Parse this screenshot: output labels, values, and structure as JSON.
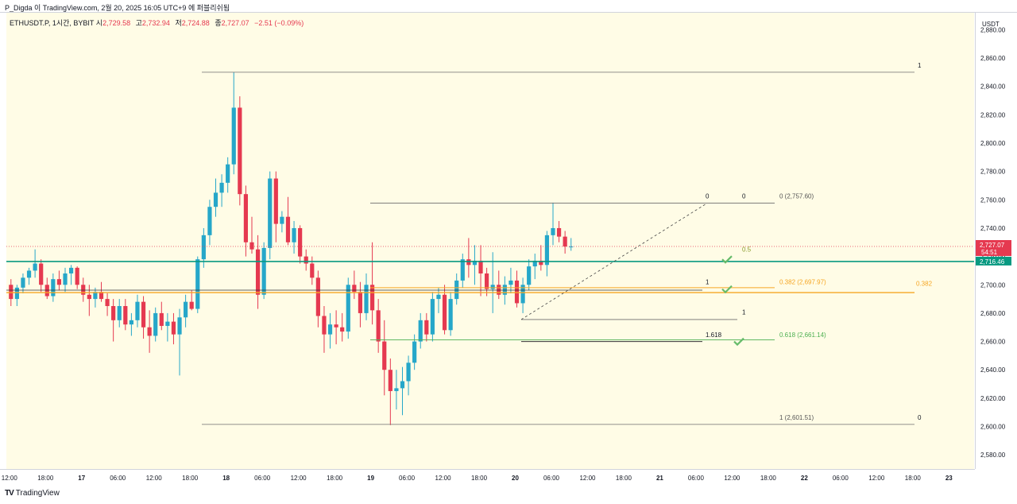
{
  "header": {
    "text": "P_Digda 이 TradingView.com, 2월 20, 2025 16:05 UTC+9 에 퍼블리쉬됨"
  },
  "symbol": {
    "label": "ETHUSDT.P, 1시간, BYBIT",
    "open_label": "시",
    "open": "2,729.58",
    "high_label": "고",
    "high": "2,732.94",
    "low_label": "저",
    "low": "2,724.88",
    "close_label": "종",
    "close": "2,727.07",
    "change": "−2.51 (−0.09%)"
  },
  "price_axis": {
    "currency": "USDT",
    "ticks": [
      "2,880.00",
      "2,860.00",
      "2,840.00",
      "2,820.00",
      "2,800.00",
      "2,780.00",
      "2,760.00",
      "2,740.00",
      "2,720.00",
      "2,700.00",
      "2,680.00",
      "2,660.00",
      "2,640.00",
      "2,620.00",
      "2,600.00",
      "2,580.00"
    ],
    "last_price": "2,727.07",
    "countdown": "54:51",
    "hline_price": "2,716.46"
  },
  "time_axis": {
    "ticks": [
      "12:00",
      "18:00",
      "17",
      "06:00",
      "12:00",
      "18:00",
      "18",
      "06:00",
      "12:00",
      "18:00",
      "19",
      "06:00",
      "12:00",
      "18:00",
      "20",
      "06:00",
      "12:00",
      "18:00",
      "21",
      "06:00",
      "12:00",
      "18:00",
      "22",
      "06:00",
      "12:00",
      "18:00",
      "23"
    ]
  },
  "footer": {
    "brand": "TradingView",
    "logo": "TV"
  },
  "colors": {
    "up": "#26a7c9",
    "down": "#e53950",
    "bg": "#fffce6",
    "hline": "#089981",
    "orange": "#f6a623",
    "green": "#4caf50"
  },
  "chart_data": {
    "type": "candlestick",
    "title": "ETHUSDT.P, 1시간, BYBIT",
    "ylim": [
      2570,
      2892
    ],
    "x_range": [
      0,
      200
    ],
    "ticks_y": [
      2580,
      2600,
      2620,
      2640,
      2660,
      2680,
      2700,
      2720,
      2740,
      2760,
      2780,
      2800,
      2820,
      2840,
      2860,
      2880
    ],
    "time_tick_positions": [
      0,
      6,
      12,
      18,
      24,
      30,
      36,
      42,
      48,
      54,
      60,
      66,
      72,
      78,
      84,
      90,
      96,
      102,
      108,
      114,
      120,
      126,
      132,
      138,
      144,
      150,
      156
    ],
    "candles": [
      [
        2700,
        2704,
        2685,
        2690
      ],
      [
        2690,
        2700,
        2685,
        2698
      ],
      [
        2698,
        2708,
        2694,
        2705
      ],
      [
        2705,
        2712,
        2700,
        2710
      ],
      [
        2710,
        2725,
        2705,
        2715
      ],
      [
        2715,
        2718,
        2695,
        2700
      ],
      [
        2700,
        2705,
        2690,
        2692
      ],
      [
        2692,
        2708,
        2688,
        2704
      ],
      [
        2704,
        2710,
        2696,
        2700
      ],
      [
        2700,
        2712,
        2695,
        2708
      ],
      [
        2708,
        2714,
        2700,
        2712
      ],
      [
        2712,
        2713,
        2697,
        2700
      ],
      [
        2700,
        2705,
        2688,
        2693
      ],
      [
        2693,
        2700,
        2678,
        2690
      ],
      [
        2690,
        2698,
        2684,
        2695
      ],
      [
        2695,
        2702,
        2688,
        2690
      ],
      [
        2690,
        2694,
        2678,
        2685
      ],
      [
        2685,
        2690,
        2660,
        2675
      ],
      [
        2675,
        2690,
        2670,
        2685
      ],
      [
        2685,
        2690,
        2668,
        2672
      ],
      [
        2672,
        2680,
        2664,
        2675
      ],
      [
        2675,
        2693,
        2670,
        2688
      ],
      [
        2688,
        2692,
        2662,
        2670
      ],
      [
        2670,
        2682,
        2652,
        2664
      ],
      [
        2664,
        2684,
        2660,
        2680
      ],
      [
        2680,
        2688,
        2668,
        2671
      ],
      [
        2671,
        2680,
        2660,
        2674
      ],
      [
        2674,
        2680,
        2658,
        2665
      ],
      [
        2665,
        2683,
        2636,
        2677
      ],
      [
        2677,
        2693,
        2670,
        2688
      ],
      [
        2688,
        2696,
        2682,
        2683
      ],
      [
        2683,
        2720,
        2680,
        2718
      ],
      [
        2718,
        2740,
        2712,
        2735
      ],
      [
        2735,
        2760,
        2728,
        2755
      ],
      [
        2755,
        2775,
        2748,
        2765
      ],
      [
        2765,
        2778,
        2755,
        2772
      ],
      [
        2772,
        2790,
        2765,
        2785
      ],
      [
        2785,
        2850,
        2778,
        2825
      ],
      [
        2825,
        2833,
        2756,
        2764
      ],
      [
        2764,
        2770,
        2720,
        2730
      ],
      [
        2730,
        2748,
        2722,
        2725
      ],
      [
        2725,
        2735,
        2683,
        2693
      ],
      [
        2693,
        2730,
        2690,
        2726
      ],
      [
        2726,
        2780,
        2718,
        2775
      ],
      [
        2775,
        2780,
        2730,
        2743
      ],
      [
        2743,
        2752,
        2737,
        2748
      ],
      [
        2748,
        2762,
        2728,
        2730
      ],
      [
        2730,
        2745,
        2722,
        2740
      ],
      [
        2740,
        2742,
        2715,
        2720
      ],
      [
        2720,
        2725,
        2710,
        2715
      ],
      [
        2715,
        2720,
        2700,
        2705
      ],
      [
        2705,
        2710,
        2670,
        2678
      ],
      [
        2678,
        2685,
        2652,
        2665
      ],
      [
        2665,
        2680,
        2655,
        2672
      ],
      [
        2672,
        2682,
        2658,
        2670
      ],
      [
        2670,
        2680,
        2660,
        2667
      ],
      [
        2667,
        2705,
        2662,
        2700
      ],
      [
        2700,
        2710,
        2690,
        2695
      ],
      [
        2695,
        2702,
        2670,
        2680
      ],
      [
        2680,
        2708,
        2675,
        2700
      ],
      [
        2700,
        2730,
        2672,
        2682
      ],
      [
        2682,
        2690,
        2652,
        2660
      ],
      [
        2660,
        2675,
        2622,
        2640
      ],
      [
        2640,
        2648,
        2601,
        2625
      ],
      [
        2625,
        2640,
        2612,
        2627
      ],
      [
        2627,
        2642,
        2608,
        2632
      ],
      [
        2632,
        2650,
        2622,
        2645
      ],
      [
        2645,
        2665,
        2640,
        2660
      ],
      [
        2660,
        2680,
        2655,
        2675
      ],
      [
        2675,
        2680,
        2660,
        2665
      ],
      [
        2665,
        2695,
        2660,
        2690
      ],
      [
        2690,
        2698,
        2680,
        2693
      ],
      [
        2693,
        2700,
        2665,
        2668
      ],
      [
        2668,
        2695,
        2664,
        2690
      ],
      [
        2690,
        2708,
        2686,
        2703
      ],
      [
        2703,
        2722,
        2698,
        2718
      ],
      [
        2718,
        2733,
        2705,
        2714
      ],
      [
        2714,
        2728,
        2700,
        2717
      ],
      [
        2717,
        2728,
        2692,
        2708
      ],
      [
        2708,
        2712,
        2692,
        2697
      ],
      [
        2697,
        2723,
        2680,
        2700
      ],
      [
        2700,
        2710,
        2690,
        2693
      ],
      [
        2693,
        2706,
        2686,
        2700
      ],
      [
        2700,
        2712,
        2694,
        2703
      ],
      [
        2703,
        2710,
        2684,
        2687
      ],
      [
        2687,
        2705,
        2680,
        2700
      ],
      [
        2700,
        2718,
        2696,
        2713
      ],
      [
        2713,
        2722,
        2704,
        2717
      ],
      [
        2717,
        2728,
        2710,
        2714
      ],
      [
        2714,
        2738,
        2706,
        2735
      ],
      [
        2735,
        2758,
        2728,
        2740
      ],
      [
        2740,
        2745,
        2730,
        2734
      ],
      [
        2734,
        2738,
        2722,
        2727
      ],
      [
        2727,
        2733,
        2724,
        2727
      ]
    ],
    "horizontal_line": {
      "price": 2716.46,
      "color": "#089981"
    },
    "fib_retracements": [
      {
        "levels": [
          {
            "ratio": "0",
            "price": "2,757.60"
          },
          {
            "ratio": "0.5",
            "price": ""
          },
          {
            "ratio": "0.382",
            "price": "2,697.97"
          },
          {
            "ratio": "0.618",
            "price": "2,661.14"
          },
          {
            "ratio": "1",
            "price": "2,601.51"
          }
        ]
      },
      {
        "levels": [
          {
            "ratio": "1",
            "price": ""
          },
          {
            "ratio": "0",
            "price": ""
          }
        ]
      }
    ],
    "fib_extension": {
      "levels": [
        "1",
        "1.618",
        "1"
      ]
    },
    "right_labels": {
      "top_1": "1",
      "top_0": "0",
      "fib382": "0.382",
      "bottom_0": "0"
    },
    "checkmarks": 3,
    "price_lines": {
      "last": 2727.07,
      "hline": 2716.46
    }
  }
}
